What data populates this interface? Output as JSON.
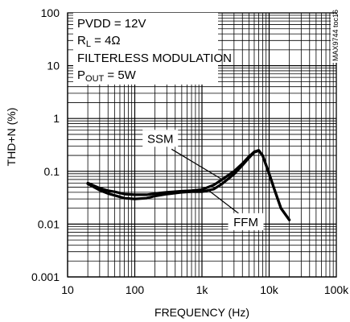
{
  "chart_data": {
    "type": "line",
    "title": "",
    "xlabel": "FREQUENCY (Hz)",
    "ylabel": "THD+N (%)",
    "xscale": "log",
    "yscale": "log",
    "xlim": [
      10,
      100000
    ],
    "ylim": [
      0.001,
      100
    ],
    "grid": true,
    "x_tick_labels": [
      "10",
      "100",
      "1k",
      "10k",
      "100k"
    ],
    "y_tick_labels": [
      "100",
      "10",
      "1",
      "0.1",
      "0.01",
      "0.001"
    ],
    "conditions": {
      "line1": "PVDD = 12V",
      "line2_main": "R",
      "line2_sub": "L",
      "line2_rest": " = 4Ω",
      "line3": "FILTERLESS MODULATION",
      "line4_main": "P",
      "line4_sub": "OUT",
      "line4_rest": " = 5W"
    },
    "figure_id": "MAX9744 toc16",
    "series": [
      {
        "name": "SSM",
        "x": [
          20,
          30,
          40,
          50,
          70,
          100,
          150,
          200,
          300,
          500,
          700,
          1000,
          1500,
          2000,
          3000,
          4000,
          5000,
          6000,
          7000,
          8000,
          10000,
          12000,
          15000,
          20000
        ],
        "y": [
          0.06,
          0.048,
          0.043,
          0.041,
          0.037,
          0.036,
          0.036,
          0.038,
          0.04,
          0.042,
          0.043,
          0.045,
          0.055,
          0.07,
          0.1,
          0.14,
          0.19,
          0.235,
          0.25,
          0.2,
          0.09,
          0.045,
          0.02,
          0.012
        ]
      },
      {
        "name": "FFM",
        "x": [
          20,
          30,
          40,
          50,
          70,
          100,
          150,
          200,
          300,
          500,
          700,
          1000,
          1500,
          2000,
          3000,
          4000,
          5000,
          6000,
          7000,
          8000,
          10000,
          12000,
          15000,
          20000
        ],
        "y": [
          0.058,
          0.044,
          0.038,
          0.035,
          0.031,
          0.03,
          0.031,
          0.034,
          0.037,
          0.04,
          0.041,
          0.041,
          0.046,
          0.058,
          0.088,
          0.13,
          0.18,
          0.23,
          0.245,
          0.2,
          0.09,
          0.045,
          0.02,
          0.012
        ]
      }
    ],
    "annotations": [
      {
        "text": "SSM",
        "series": "SSM",
        "x": 2000,
        "y": 0.07
      },
      {
        "text": "FFM",
        "series": "FFM",
        "x": 1300,
        "y": 0.042
      }
    ]
  }
}
